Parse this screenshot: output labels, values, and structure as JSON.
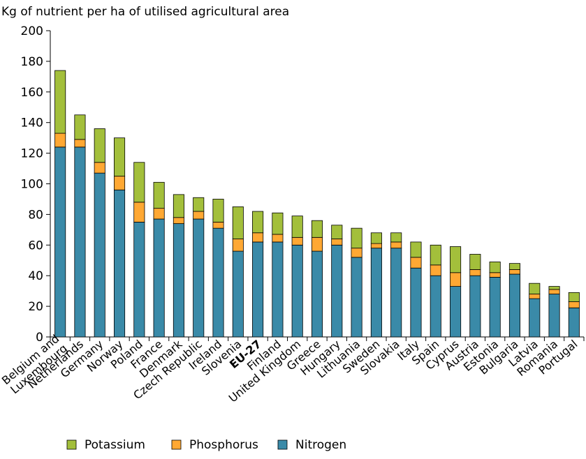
{
  "chart_data": {
    "type": "bar",
    "stacked": true,
    "ylabel": "Kg of nutrient per ha of utilised agricultural area",
    "ylim": [
      0,
      200
    ],
    "yticks": [
      0,
      20,
      40,
      60,
      80,
      100,
      120,
      140,
      160,
      180,
      200
    ],
    "categories": [
      "Belgium and Luxembourg",
      "Netherlands",
      "Germany",
      "Norway",
      "Poland",
      "France",
      "Denmark",
      "Czech Republic",
      "Ireland",
      "Slovenia",
      "EU-27",
      "Finland",
      "United Kingdom",
      "Greece",
      "Hungary",
      "Lithuania",
      "Sweden",
      "Slovakia",
      "Italy",
      "Spain",
      "Cyprus",
      "Austria",
      "Estonia",
      "Bulgaria",
      "Latvia",
      "Romania",
      "Portugal"
    ],
    "highlight_category": "EU-27",
    "series": [
      {
        "name": "Nitrogen",
        "color": "#3a8aa8",
        "values": [
          124,
          124,
          107,
          96,
          75,
          77,
          74,
          77,
          71,
          56,
          62,
          62,
          60,
          56,
          60,
          52,
          58,
          58,
          45,
          40,
          33,
          40,
          39,
          41,
          25,
          28,
          19
        ]
      },
      {
        "name": "Phosphorus",
        "color": "#ffa833",
        "values": [
          9,
          5,
          7,
          9,
          13,
          7,
          4,
          5,
          4,
          8,
          6,
          5,
          5,
          9,
          4,
          6,
          3,
          4,
          7,
          7,
          9,
          4,
          3,
          3,
          3,
          3,
          4
        ]
      },
      {
        "name": "Potassium",
        "color": "#a3bf3b",
        "values": [
          41,
          16,
          22,
          25,
          26,
          17,
          15,
          9,
          15,
          21,
          14,
          14,
          14,
          11,
          9,
          13,
          7,
          6,
          10,
          13,
          17,
          10,
          7,
          4,
          7,
          2,
          6
        ]
      }
    ],
    "legend": {
      "placement": "bottom",
      "order": [
        "Potassium",
        "Phosphorus",
        "Nitrogen"
      ]
    },
    "grid": false
  }
}
